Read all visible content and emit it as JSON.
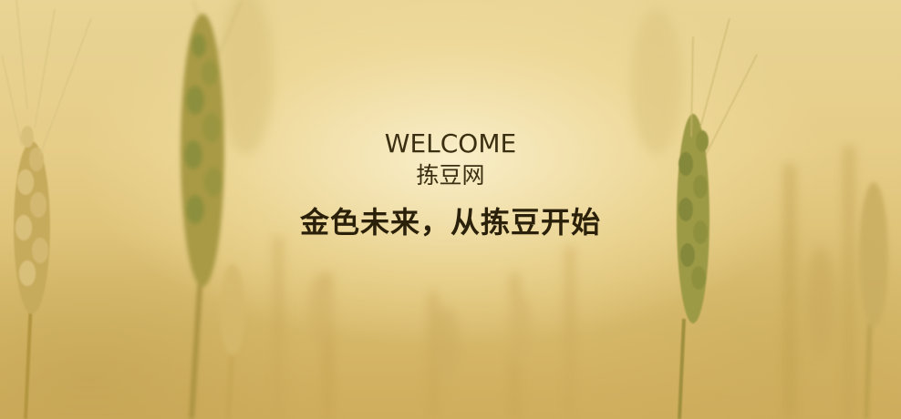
{
  "banner": {
    "welcome": "WELCOME",
    "brand": "拣豆网",
    "slogan": "金色未来，从拣豆开始",
    "colors": {
      "background": "#e6cd88",
      "text": "#3b2f12",
      "wheat": "#b89a48",
      "wheat_dark": "#8a7030",
      "wheat_green": "#8c8f3c"
    }
  }
}
